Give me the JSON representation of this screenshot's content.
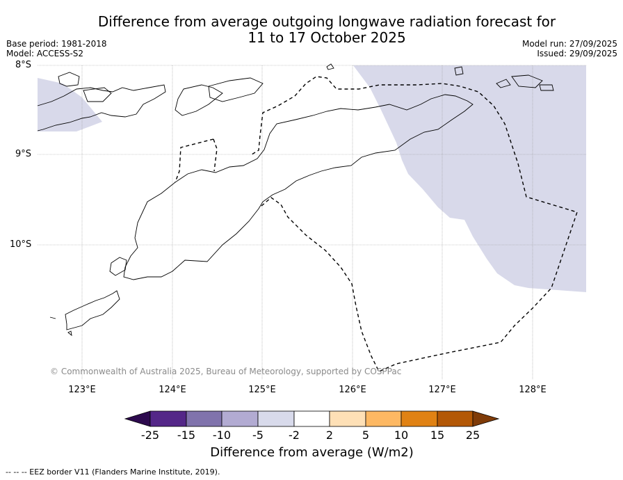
{
  "title": {
    "line1": "Difference from average outgoing longwave radiation forecast for",
    "line2": "11 to 17 October 2025"
  },
  "meta": {
    "base_period": "Base period: 1981-2018",
    "model": "Model: ACCESS-S2",
    "model_run": "Model run: 27/09/2025",
    "issued": "Issued: 29/09/2025"
  },
  "map": {
    "lat_labels": [
      "8°S",
      "9°S",
      "10°S"
    ],
    "lon_labels": [
      "123°E",
      "124°E",
      "125°E",
      "126°E",
      "127°E",
      "128°E"
    ],
    "copyright": "© Commonwealth of Australia 2025, Bureau of Meteorology, supported by COSPPac",
    "anomaly_fill_color": "#d8d9ea"
  },
  "colorbar": {
    "ticks": [
      "-25",
      "-15",
      "-10",
      "-5",
      "-2",
      "2",
      "5",
      "10",
      "15",
      "25"
    ],
    "colors": [
      "#2d0a4e",
      "#542788",
      "#8073ac",
      "#b2abd2",
      "#d8daeb",
      "#ffffff",
      "#fee0b6",
      "#fdb863",
      "#e08214",
      "#b35806",
      "#7f3b08"
    ],
    "label": "Difference from average (W/m2)"
  },
  "footnote": "--  --  -- EEZ border V11 (Flanders Marine Institute, 2019)."
}
